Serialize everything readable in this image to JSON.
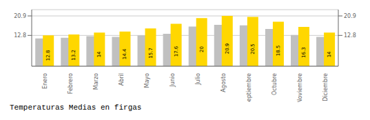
{
  "chart_data": {
    "type": "bar",
    "title": "Temperaturas Medias en firgas",
    "categories": [
      "Enero",
      "Febrero",
      "Marzo",
      "Abril",
      "Mayo",
      "Junio",
      "Julio",
      "Agosto",
      "Septiembre",
      "Octubre",
      "Noviembre",
      "Diciembre"
    ],
    "series": [
      {
        "color": "#C0C0C0",
        "values": [
          11.5,
          11.8,
          12.5,
          12.2,
          12.8,
          13.5,
          16.5,
          17.2,
          17.0,
          15.5,
          13.0,
          12.2
        ]
      },
      {
        "color": "#FFD700",
        "values": [
          12.8,
          13.2,
          14.0,
          14.4,
          15.7,
          17.6,
          20.0,
          20.9,
          20.5,
          18.5,
          16.3,
          14.0
        ],
        "data_labels": true
      }
    ],
    "ylim": [
      0,
      23.5
    ],
    "yticks": [
      12.8,
      20.9
    ],
    "y2lim": [
      0,
      23.5
    ],
    "y2ticks": [
      12.8,
      20.9
    ],
    "grid": true
  }
}
